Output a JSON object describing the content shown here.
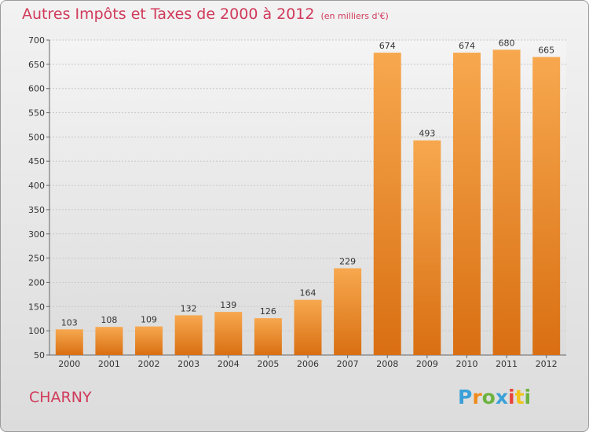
{
  "title": "Autres Impôts et Taxes de 2000 à 2012",
  "unit": "(en milliers d'€)",
  "commune": "CHARNY",
  "logo": "Proxiti",
  "colors": {
    "bar_light": "#f7a84f",
    "bar_dark": "#d96f12",
    "title": "#d03a5a"
  },
  "chart_data": {
    "type": "bar",
    "title": "Autres Impôts et Taxes de 2000 à 2012",
    "subtitle": "(en milliers d'€)",
    "categories": [
      "2000",
      "2001",
      "2002",
      "2003",
      "2004",
      "2005",
      "2006",
      "2007",
      "2008",
      "2009",
      "2010",
      "2011",
      "2012"
    ],
    "values": [
      103,
      108,
      109,
      132,
      139,
      126,
      164,
      229,
      674,
      493,
      674,
      680,
      665
    ],
    "ylim": [
      50,
      700
    ],
    "yticks": [
      50,
      100,
      150,
      200,
      250,
      300,
      350,
      400,
      450,
      500,
      550,
      600,
      650,
      700
    ],
    "grid": true
  }
}
